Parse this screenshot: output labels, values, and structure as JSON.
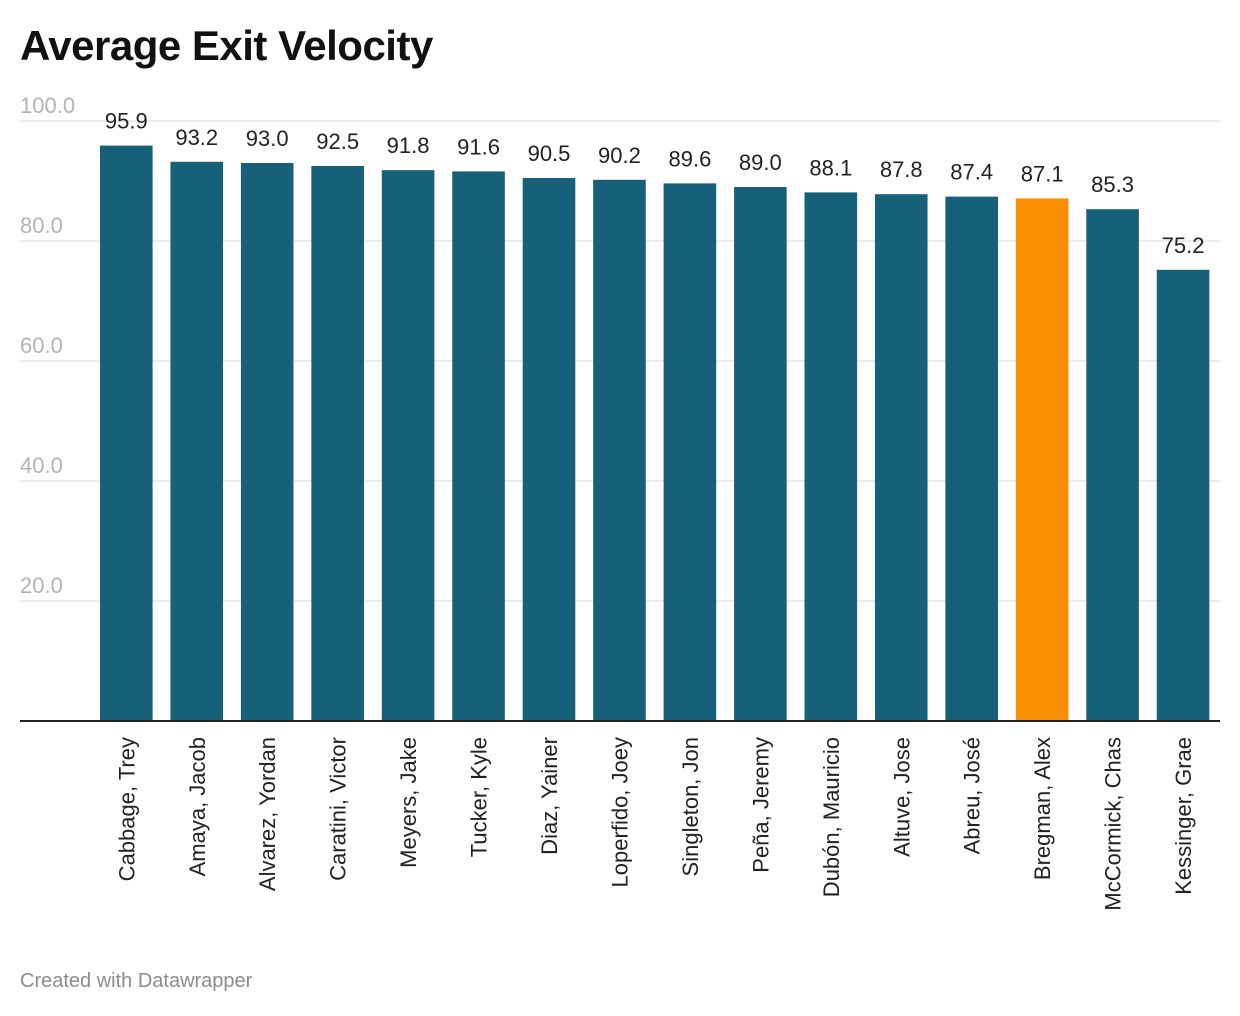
{
  "header": {
    "title": "Average Exit Velocity"
  },
  "footer": {
    "credit": "Created with Datawrapper"
  },
  "colors": {
    "bar": "#17607a",
    "highlight": "#f78f00",
    "gridline": "#d9d9d9",
    "baseline": "#222222",
    "tick_label": "#b3b3b3",
    "value_label": "#222222"
  },
  "chart_data": {
    "type": "bar",
    "title": "Average Exit Velocity",
    "xlabel": "",
    "ylabel": "",
    "ylim": [
      0,
      100
    ],
    "yticks": [
      20,
      40,
      60,
      80,
      100
    ],
    "ytick_labels": [
      "20.0",
      "40.0",
      "60.0",
      "80.0",
      "100.0"
    ],
    "grid": true,
    "value_labels_shown": true,
    "categories": [
      "Cabbage, Trey",
      "Amaya, Jacob",
      "Alvarez, Yordan",
      "Caratini, Victor",
      "Meyers, Jake",
      "Tucker, Kyle",
      "Diaz, Yainer",
      "Loperfido, Joey",
      "Singleton, Jon",
      "Peña, Jeremy",
      "Dubón, Mauricio",
      "Altuve, Jose",
      "Abreu, José",
      "Bregman, Alex",
      "McCormick, Chas",
      "Kessinger, Grae"
    ],
    "values": [
      95.9,
      93.2,
      93.0,
      92.5,
      91.8,
      91.6,
      90.5,
      90.2,
      89.6,
      89.0,
      88.1,
      87.8,
      87.4,
      87.1,
      85.3,
      75.2
    ],
    "value_labels": [
      "95.9",
      "93.2",
      "93.0",
      "92.5",
      "91.8",
      "91.6",
      "90.5",
      "90.2",
      "89.6",
      "89.0",
      "88.1",
      "87.8",
      "87.4",
      "87.1",
      "85.3",
      "75.2"
    ],
    "highlighted_category": "Bregman, Alex"
  }
}
